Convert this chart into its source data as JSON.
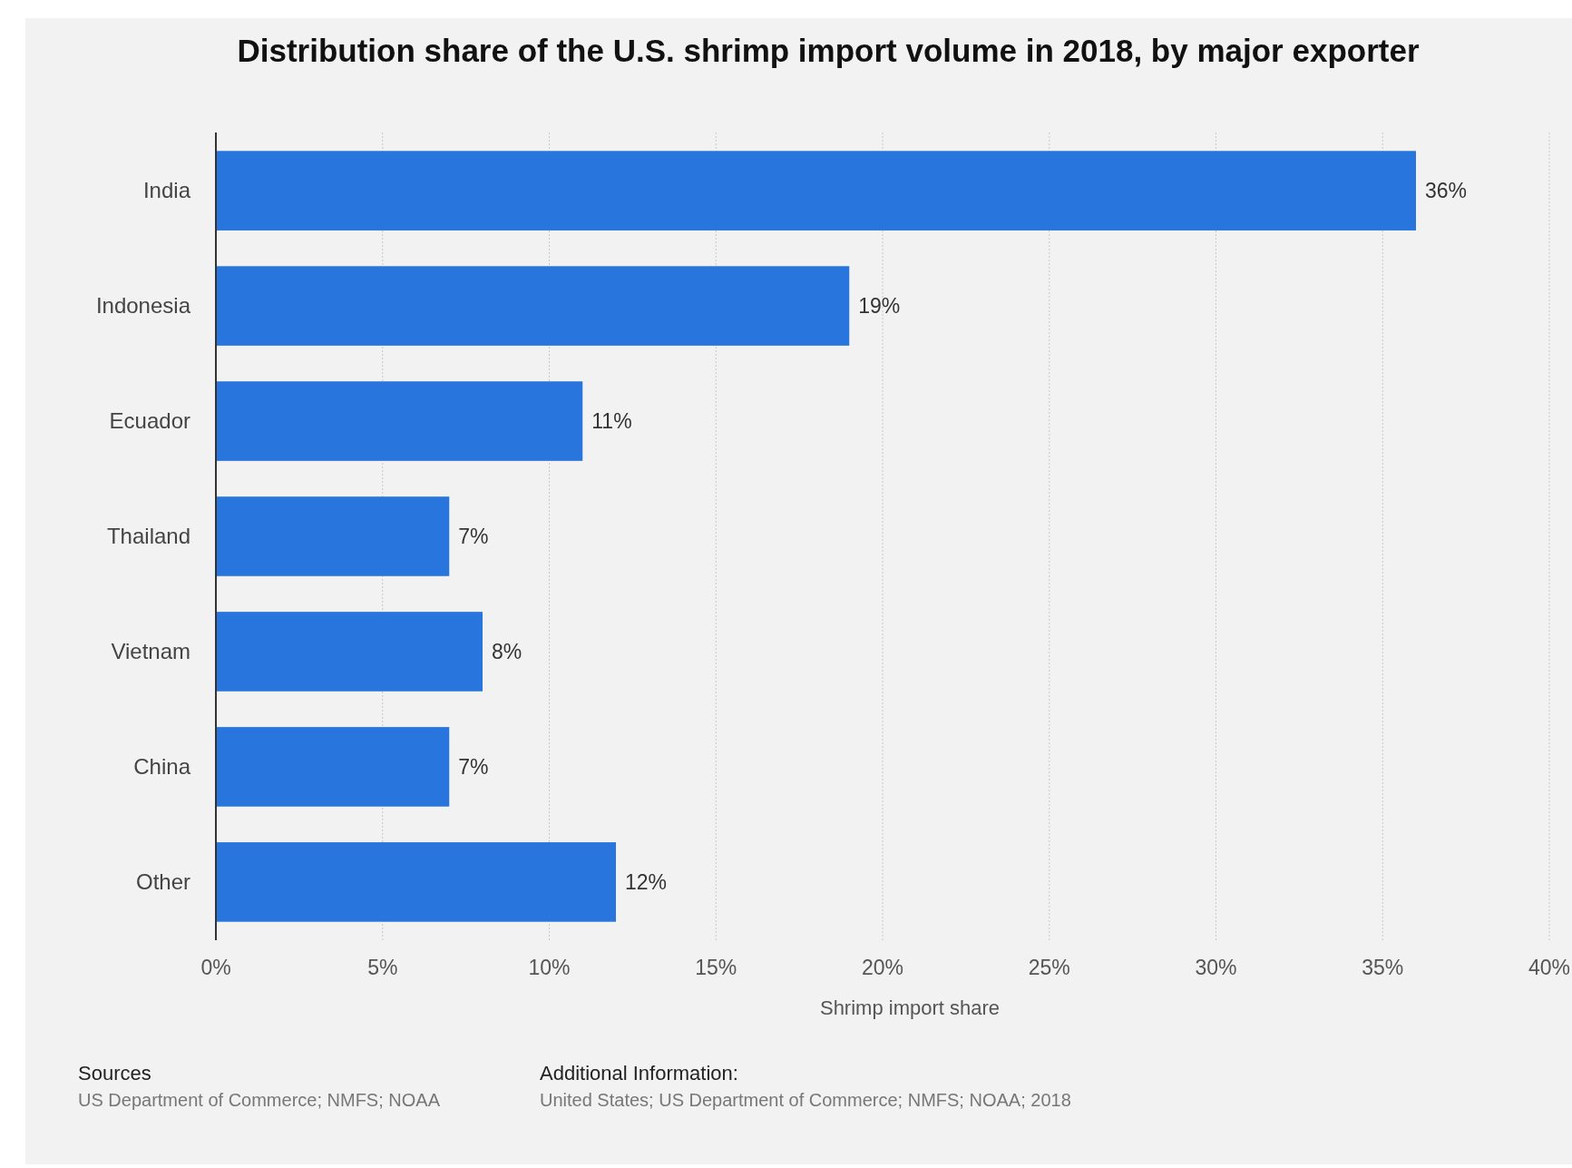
{
  "chart_data": {
    "type": "bar",
    "orientation": "horizontal",
    "title": "Distribution share of the U.S. shrimp import volume in 2018, by major exporter",
    "xlabel": "Shrimp import share",
    "categories": [
      "India",
      "Indonesia",
      "Ecuador",
      "Thailand",
      "Vietnam",
      "China",
      "Other"
    ],
    "values": [
      36,
      19,
      11,
      7,
      8,
      7,
      12
    ],
    "value_labels": [
      "36%",
      "19%",
      "11%",
      "7%",
      "8%",
      "7%",
      "12%"
    ],
    "color": "#2876dd",
    "xlim": [
      0,
      40
    ],
    "xticks": [
      {
        "value": 0,
        "label": "0%"
      },
      {
        "value": 5,
        "label": "5%"
      },
      {
        "value": 10,
        "label": "10%"
      },
      {
        "value": 15,
        "label": "15%"
      },
      {
        "value": 20,
        "label": "20%"
      },
      {
        "value": 25,
        "label": "25%"
      },
      {
        "value": 30,
        "label": "30%"
      },
      {
        "value": 35,
        "label": "35%"
      },
      {
        "value": 40,
        "label": "40%"
      }
    ],
    "grid": "x",
    "annotations": [
      "Sources",
      "US Department of Commerce; NMFS; NOAA",
      "Additional Information:",
      "United States; US Department of Commerce; NMFS; NOAA; 2018"
    ]
  }
}
